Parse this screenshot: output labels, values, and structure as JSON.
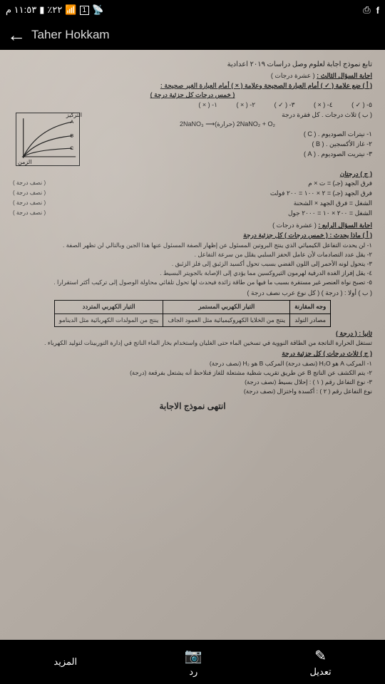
{
  "status": {
    "time": "١١:٥٣ م",
    "battery": "٪٢٢"
  },
  "header": {
    "title": "Taher Hokkam"
  },
  "p": {
    "hand": "تابع نموذج اجابة لعلوم وصل دراسات ٢٠١٩ اعدادية",
    "q3": {
      "title": "اجابة السؤال الثالث :",
      "marks": "( عشرة درجات )"
    },
    "a": {
      "instr": "( أ ) ضع علامة ( ✓ ) أمام العبارة الصحيحة وعلامة ( × ) أمام العبارة الغير صحيحة :",
      "sub": "( خمس درجات كل جزئية درجة )"
    },
    "ans": [
      "١- ( × )",
      "٢- ( × )",
      "٣- ( ✓ )",
      "٤- ( × )",
      "٥- ( ✓ )"
    ],
    "b": {
      "t": "( ب ) ثلاث درجات . كل فقرة درجة"
    },
    "eq": "2NaNO₃ ⟶(حرارة) 2NaNO₂ + O₂",
    "prod": [
      "١- نيترات الصوديوم  . ( C )",
      "٢- غاز الأكسجين  . ( B )",
      "٣- نيتريت الصوديوم . ( A )"
    ],
    "c": "( ج ) درجتان",
    "work": [
      {
        "l": "فرق الجهد (جـ) = ت × م",
        "g": "( نصف درجة )"
      },
      {
        "l": "فرق الجهد (جـ) = ٢ × ١٠٠ = ٢٠٠ فولت",
        "g": "( نصف درجة )"
      },
      {
        "l": "الشغل = فرق الجهد × الشحنة",
        "g": "( نصف درجة )"
      },
      {
        "l": "الشغل = ٢٠٠ × ١٠ = ٢٠٠٠ جول",
        "g": "( نصف درجة )"
      }
    ],
    "q4": {
      "title": "اجابة السؤال الرابع :",
      "marks": "( عشرة درجات )"
    },
    "aa": "( أ ) ماذا يحدث : ( خمس درجات ) كل جزئية درجة",
    "happens": [
      "١- لن يحدث التفاعل الكيميائي الذي ينتج البروتين المسئول عن إظهار الصفة المسئول عنها هذا الجين وبالتالي لن تظهر الصفة .",
      "٢- يقل عدد التصادمات لأن عامل الحفز السلبي يقلل من سرعة التفاعل .",
      "٣- يتحول لونه الأحمر إلى اللون الفضي بسبب تحول أكسيد الزئبق إلى فلز الزئبق .",
      "٤- يقل إفراز الغدة الدرقية لهرمون الثيروكسين مما يؤدي إلى الإصابة بالجويتر البسيط .",
      "٥- تصبح نواة العنصر غير مستقرة بسبب ما فيها من طاقة زائدة فيحدث لها تحول تلقائي محاولة الوصول إلى تركيب أكثر استقرارا ."
    ],
    "bb": "( ب ) أولا : ( درجة )             ( كل نوع عرب نصف درجة )",
    "tbl": {
      "h": [
        "وجه المقارنة",
        "التيار الكهربي المستمر",
        "التيار الكهربي المتردد"
      ],
      "r": [
        "مصادر التولد",
        "ينتج من الخلايا الكهروكيميائية مثل العمود الجاف",
        "ينتج من المولدات الكهربائية مثل الدينامو"
      ]
    },
    "th": "ثانيا : ( درجة )",
    "thtxt": "تستغل الحرارة الناتجة من الطاقة النووية في تسخين الماء حتى الغليان واستخدام بخار الماء الناتج في إدارة التوربينات لتوليد الكهرباء .",
    "cc": "( ج ) ثلاث درجات ) كل جزئية درجة",
    "cclines": [
      "١- المركب A هو H₂O (نصف درجة)    المركب B هو H₂ (نصف درجة)",
      "٢- يتم الكشف عن الناتج B عن طريق تقريب شظية مشتعلة للغاز فنلاحظ أنه يشتعل بفرقعة (درجة)",
      "٣- نوع التفاعل رقم ( ١ ) : إحلال بسيط      (نصف درجة)",
      "   نوع التفاعل رقم ( ٢ ) : أكسدة واختزال    (نصف درجة)"
    ],
    "end": "انتهى نموذج الاجابة"
  },
  "bottom": {
    "edit": "تعديل",
    "reply": "رد",
    "more": "المزيد"
  },
  "g": {
    "ylabel": "التركيز",
    "xlabel": "الزمن",
    "curves": [
      "A",
      "B",
      "C"
    ],
    "paths": [
      "M10 60 Q 30 20 80 10",
      "M10 60 Q 30 35 80 30",
      "M10 60 Q 25 50 80 48"
    ],
    "color": "#222"
  }
}
